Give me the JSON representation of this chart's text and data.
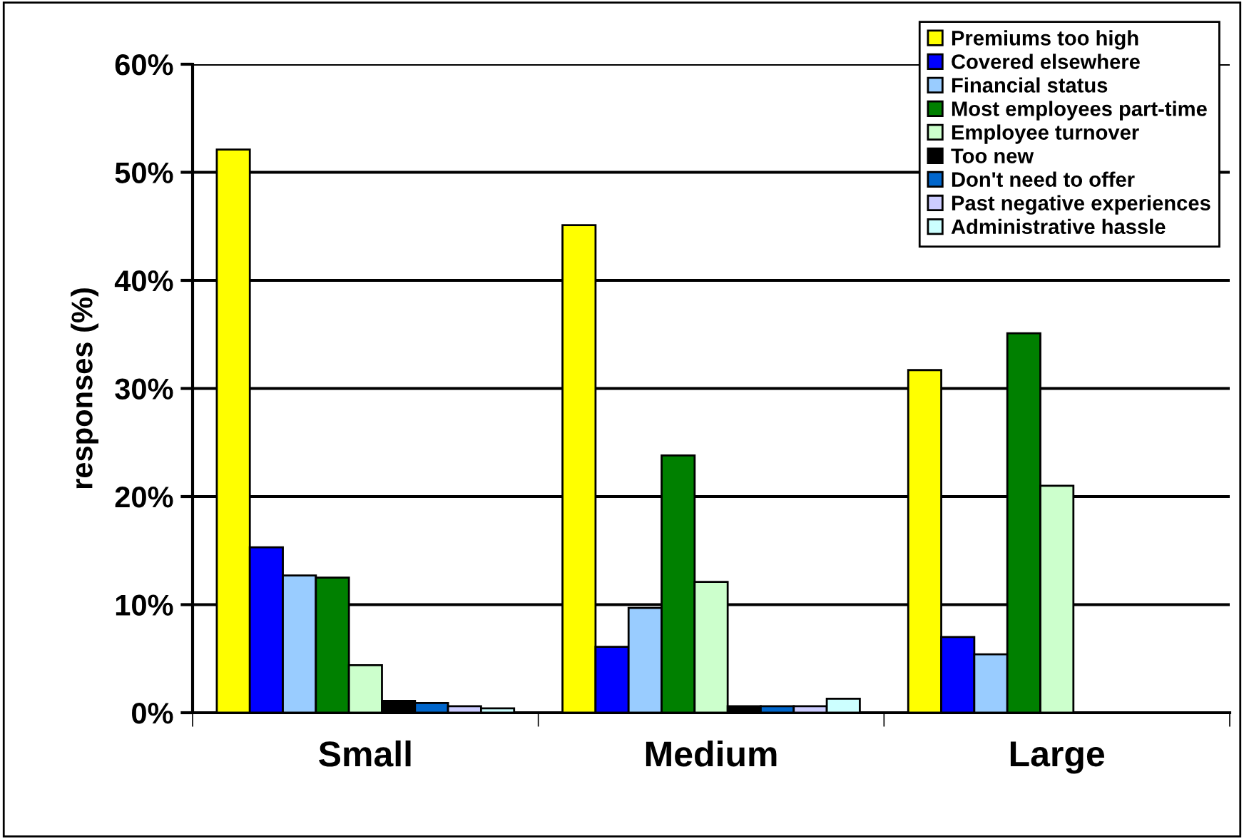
{
  "chart_data": {
    "type": "bar",
    "ylabel": "responses (%)",
    "categories": [
      "Small",
      "Medium",
      "Large"
    ],
    "series": [
      {
        "name": "Premiums too high",
        "color": "#ffff00",
        "values": [
          52.1,
          45.1,
          31.7
        ]
      },
      {
        "name": "Covered elsewhere",
        "color": "#0000ff",
        "values": [
          15.3,
          6.1,
          7.0
        ]
      },
      {
        "name": "Financial status",
        "color": "#99ccff",
        "values": [
          12.7,
          9.7,
          5.4
        ]
      },
      {
        "name": "Most employees part-time",
        "color": "#008000",
        "values": [
          12.5,
          23.8,
          35.1
        ]
      },
      {
        "name": "Employee turnover",
        "color": "#ccffcc",
        "values": [
          4.4,
          12.1,
          21.0
        ]
      },
      {
        "name": "Too new",
        "color": "#000000",
        "values": [
          1.1,
          0.6,
          null
        ]
      },
      {
        "name": "Don't need to offer",
        "color": "#0066cc",
        "values": [
          0.9,
          0.6,
          null
        ]
      },
      {
        "name": "Past negative experiences",
        "color": "#ccccff",
        "values": [
          0.6,
          0.6,
          null
        ]
      },
      {
        "name": "Administrative hassle",
        "color": "#ccffff",
        "values": [
          0.4,
          1.3,
          null
        ]
      }
    ],
    "ylim": [
      0,
      60
    ],
    "yticks": [
      {
        "value": 0,
        "label": "0%"
      },
      {
        "value": 10,
        "label": "10%"
      },
      {
        "value": 20,
        "label": "20%"
      },
      {
        "value": 30,
        "label": "30%"
      },
      {
        "value": 40,
        "label": "40%"
      },
      {
        "value": 50,
        "label": "50%"
      },
      {
        "value": 60,
        "label": "60%"
      }
    ],
    "grid": "y",
    "legend": "top right"
  }
}
